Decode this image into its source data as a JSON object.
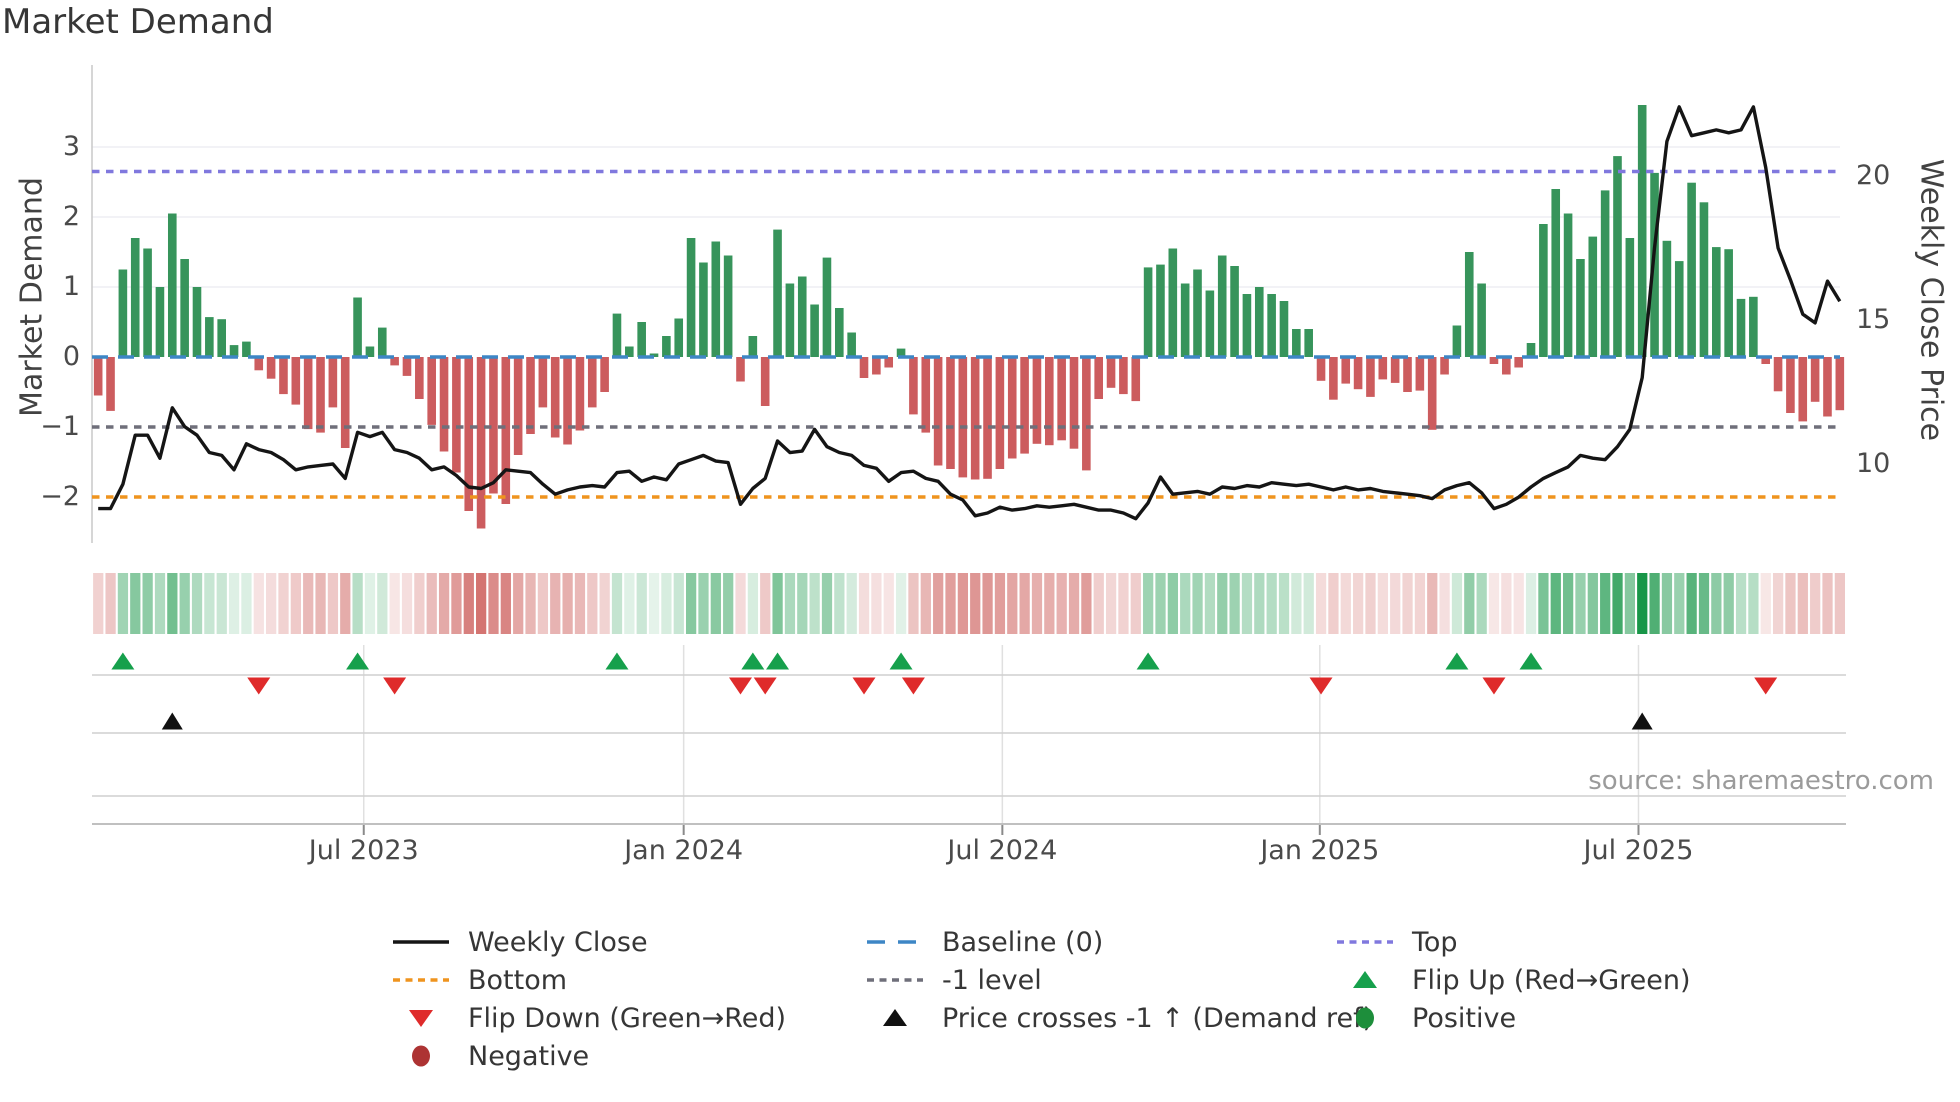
{
  "title": "Market Demand",
  "source_note": "source: sharemaestro.com",
  "axes": {
    "left_label": "Market Demand",
    "right_label": "Weekly Close Price",
    "left_ticks": [
      {
        "label": "3",
        "value": 3
      },
      {
        "label": "2",
        "value": 2
      },
      {
        "label": "1",
        "value": 1
      },
      {
        "label": "0",
        "value": 0
      },
      {
        "label": "−1",
        "value": -1
      },
      {
        "label": "−2",
        "value": -2
      }
    ],
    "right_ticks": [
      {
        "label": "20",
        "value": 20
      },
      {
        "label": "15",
        "value": 15
      },
      {
        "label": "10",
        "value": 10
      }
    ],
    "x_ticks": [
      {
        "label": "Jul 2023",
        "week": 21.5
      },
      {
        "label": "Jan 2024",
        "week": 47.4
      },
      {
        "label": "Jul 2024",
        "week": 73.2
      },
      {
        "label": "Jan 2025",
        "week": 98.9
      },
      {
        "label": "Jul 2025",
        "week": 124.7
      }
    ]
  },
  "reference_lines": {
    "top": {
      "label": "Top",
      "value": 2.65,
      "color": "#8078de"
    },
    "baseline": {
      "label": "Baseline (0)",
      "value": 0.0,
      "color": "#3d86c5"
    },
    "minus1": {
      "label": "-1 level",
      "value": -1.0,
      "color": "#6f6f7a"
    },
    "bottom": {
      "label": "Bottom",
      "value": -2.0,
      "color": "#ef941e"
    }
  },
  "colors": {
    "bar_positive": "#37945b",
    "bar_negative": "#cc5c5e",
    "price_line": "#151515",
    "flip_up": "#16a04c",
    "flip_down": "#df2b2b",
    "price_cross": "#111111",
    "positive_dot": "#1d8e3b",
    "negative_dot": "#ad3333",
    "heat_positive": "#189648",
    "heat_negative": "#c23c38",
    "grid": "#ededf4",
    "spine": "#c9c9c9",
    "panel_grid": "#e0e0e0",
    "panel_line": "#cfcfcf"
  },
  "legend": {
    "items": [
      {
        "id": "weekly-close",
        "label": "Weekly Close",
        "swatch": "solid-line",
        "color": "#151515"
      },
      {
        "id": "bottom",
        "label": "Bottom",
        "swatch": "dotted-line",
        "color": "#ef941e"
      },
      {
        "id": "flip-down",
        "label": "Flip Down (Green→Red)",
        "swatch": "triangle-down",
        "color": "#df2b2b"
      },
      {
        "id": "negative",
        "label": "Negative",
        "swatch": "circle",
        "color": "#ad3333"
      },
      {
        "id": "baseline",
        "label": "Baseline (0)",
        "swatch": "dashed-line",
        "color": "#3d86c5"
      },
      {
        "id": "minus1-level",
        "label": "-1 level",
        "swatch": "dotted-line",
        "color": "#6f6f7a"
      },
      {
        "id": "price-crosses",
        "label": "Price crosses -1 ↑ (Demand ref)",
        "swatch": "triangle-up",
        "color": "#111111"
      },
      {
        "id": "top",
        "label": "Top",
        "swatch": "dotted-line",
        "color": "#8078de"
      },
      {
        "id": "flip-up",
        "label": "Flip Up (Red→Green)",
        "swatch": "triangle-up",
        "color": "#16a04c"
      },
      {
        "id": "positive",
        "label": "Positive",
        "swatch": "circle",
        "color": "#1d8e3b"
      }
    ]
  },
  "chart_data": {
    "type": "bar+line",
    "weeks": 142,
    "title": "Market Demand",
    "ylabel_left": "Market Demand",
    "ylabel_right": "Weekly Close Price",
    "demand_ylim": [
      -2.9,
      4.17
    ],
    "grid_demand_values": [
      3,
      2,
      1
    ],
    "series": [
      {
        "name": "Market Demand",
        "type": "bar",
        "axis": "left",
        "values": [
          -0.55,
          -0.77,
          1.25,
          1.7,
          1.55,
          1.0,
          2.05,
          1.4,
          1.0,
          0.57,
          0.54,
          0.17,
          0.22,
          -0.19,
          -0.31,
          -0.53,
          -0.68,
          -1.03,
          -1.08,
          -0.72,
          -1.3,
          0.85,
          0.15,
          0.42,
          -0.12,
          -0.27,
          -0.6,
          -0.97,
          -1.35,
          -1.65,
          -2.2,
          -2.45,
          -1.95,
          -2.1,
          -1.4,
          -1.1,
          -0.72,
          -1.15,
          -1.25,
          -1.05,
          -0.72,
          -0.5,
          0.62,
          0.15,
          0.5,
          0.05,
          0.3,
          0.55,
          1.7,
          1.35,
          1.65,
          1.45,
          -0.35,
          0.3,
          -0.7,
          1.82,
          1.05,
          1.15,
          0.75,
          1.42,
          0.7,
          0.35,
          -0.3,
          -0.25,
          -0.15,
          0.12,
          -0.82,
          -1.08,
          -1.55,
          -1.6,
          -1.72,
          -1.75,
          -1.74,
          -1.6,
          -1.45,
          -1.38,
          -1.24,
          -1.26,
          -1.19,
          -1.31,
          -1.62,
          -0.6,
          -0.44,
          -0.53,
          -0.63,
          1.28,
          1.32,
          1.55,
          1.05,
          1.25,
          0.95,
          1.45,
          1.3,
          0.9,
          1.0,
          0.9,
          0.8,
          0.4,
          0.4,
          -0.34,
          -0.61,
          -0.38,
          -0.46,
          -0.57,
          -0.32,
          -0.37,
          -0.5,
          -0.48,
          -1.04,
          -0.25,
          0.45,
          1.5,
          1.05,
          -0.1,
          -0.25,
          -0.15,
          0.2,
          1.9,
          2.4,
          2.05,
          1.4,
          1.72,
          2.38,
          2.87,
          1.7,
          3.6,
          2.63,
          1.66,
          1.37,
          2.49,
          2.21,
          1.57,
          1.54,
          0.83,
          0.86,
          -0.1,
          -0.49,
          -0.8,
          -0.92,
          -0.64,
          -0.85,
          -0.76
        ]
      },
      {
        "name": "Weekly Close",
        "type": "line",
        "axis": "right",
        "values": [
          8.45,
          8.45,
          9.3,
          11.0,
          11.0,
          10.2,
          11.95,
          11.3,
          11.0,
          10.4,
          10.3,
          9.8,
          10.7,
          10.5,
          10.4,
          10.15,
          9.8,
          9.9,
          9.95,
          10.0,
          9.5,
          11.1,
          10.95,
          11.1,
          10.5,
          10.4,
          10.2,
          9.8,
          9.9,
          9.6,
          9.2,
          9.15,
          9.35,
          9.8,
          9.75,
          9.7,
          9.3,
          8.95,
          9.1,
          9.2,
          9.25,
          9.2,
          9.7,
          9.75,
          9.4,
          9.55,
          9.45,
          10.0,
          10.15,
          10.3,
          10.1,
          10.05,
          8.6,
          9.15,
          9.5,
          10.8,
          10.4,
          10.45,
          11.2,
          10.6,
          10.4,
          10.3,
          9.95,
          9.85,
          9.4,
          9.7,
          9.75,
          9.5,
          9.4,
          8.95,
          8.75,
          8.2,
          8.3,
          8.5,
          8.4,
          8.45,
          8.55,
          8.5,
          8.55,
          8.6,
          8.5,
          8.4,
          8.4,
          8.3,
          8.1,
          8.65,
          9.55,
          8.95,
          9.0,
          9.05,
          8.95,
          9.2,
          9.15,
          9.25,
          9.2,
          9.35,
          9.3,
          9.25,
          9.3,
          9.2,
          9.1,
          9.2,
          9.1,
          9.15,
          9.05,
          9.0,
          8.95,
          8.9,
          8.8,
          9.1,
          9.25,
          9.35,
          9.0,
          8.45,
          8.6,
          8.85,
          9.2,
          9.5,
          9.7,
          9.9,
          10.3,
          10.2,
          10.15,
          10.6,
          11.2,
          13.0,
          17.5,
          21.2,
          22.4,
          21.4,
          21.5,
          21.6,
          21.5,
          21.6,
          22.4,
          20.3,
          17.5,
          16.4,
          15.2,
          14.9,
          16.35,
          15.65
        ]
      }
    ],
    "flip_up_weeks": [
      2,
      21,
      42,
      53,
      55,
      65,
      85,
      110,
      116
    ],
    "flip_down_weeks": [
      13,
      24,
      52,
      54,
      62,
      66,
      99,
      113,
      135
    ],
    "price_cross_weeks": [
      6,
      125
    ],
    "legend_position": "bottom",
    "grid": true
  }
}
